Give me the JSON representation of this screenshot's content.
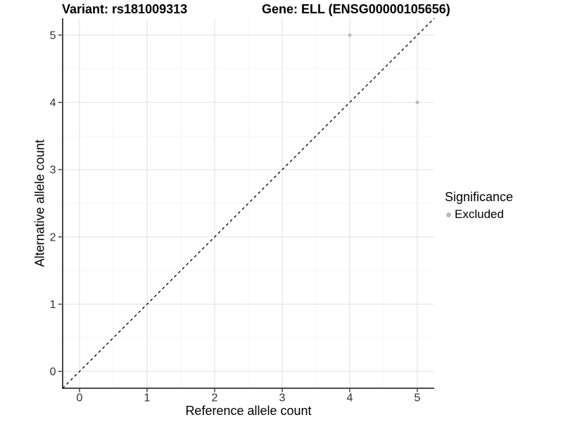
{
  "chart_data": {
    "type": "scatter",
    "title_left": "Variant: rs181009313",
    "title_right": "Gene: ELL (ENSG00000105656)",
    "xlabel": "Reference allele count",
    "ylabel": "Alternative allele count",
    "xlim": [
      -0.25,
      5.25
    ],
    "ylim": [
      -0.25,
      5.25
    ],
    "xticks": [
      0,
      1,
      2,
      3,
      4,
      5
    ],
    "yticks": [
      0,
      1,
      2,
      3,
      4,
      5
    ],
    "grid": {
      "major": true,
      "minor": true,
      "major_color": "#e4e4e4",
      "minor_color": "#f2f2f2"
    },
    "reference_line": {
      "style": "dashed",
      "color": "#000000",
      "from": [
        -0.25,
        -0.25
      ],
      "to": [
        5.25,
        5.25
      ]
    },
    "series": [
      {
        "name": "Excluded",
        "color": "#bdbdbd",
        "points": [
          {
            "x": 4,
            "y": 5
          },
          {
            "x": 5,
            "y": 4
          }
        ]
      }
    ],
    "legend": {
      "position": "right",
      "title": "Significance",
      "items": [
        {
          "label": "Excluded",
          "color": "#bdbdbd",
          "marker": "circle"
        }
      ]
    },
    "axis": {
      "line_color": "#333333",
      "tick_color": "#333333",
      "tick_label_color": "#303030"
    }
  }
}
